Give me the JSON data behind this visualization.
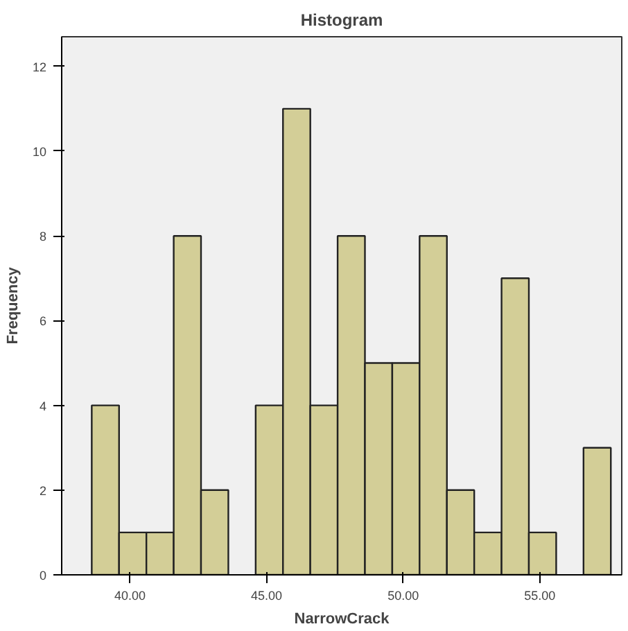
{
  "chart_data": {
    "type": "histogram",
    "title": "Histogram",
    "xlabel": "NarrowCrack",
    "ylabel": "Frequency",
    "bins": [
      38.6,
      39.6,
      40.6,
      41.6,
      42.6,
      43.6,
      44.6,
      45.6,
      46.6,
      47.6,
      48.6,
      49.6,
      50.6,
      51.6,
      52.6,
      53.6,
      54.6,
      55.6,
      56.6,
      57.6
    ],
    "values": [
      4,
      1,
      1,
      8,
      2,
      0,
      4,
      11,
      4,
      8,
      5,
      5,
      8,
      2,
      1,
      7,
      1,
      0,
      3
    ],
    "color": "#d3ce97",
    "xlim": [
      37.5,
      58.0
    ],
    "xticks": [
      {
        "value": 40,
        "label": "40.00"
      },
      {
        "value": 45,
        "label": "45.00"
      },
      {
        "value": 50,
        "label": "50.00"
      },
      {
        "value": 55,
        "label": "55.00"
      }
    ],
    "ylim": [
      0,
      12.7
    ],
    "yticks": [
      0,
      2,
      4,
      6,
      8,
      10,
      12
    ],
    "grid": false
  }
}
